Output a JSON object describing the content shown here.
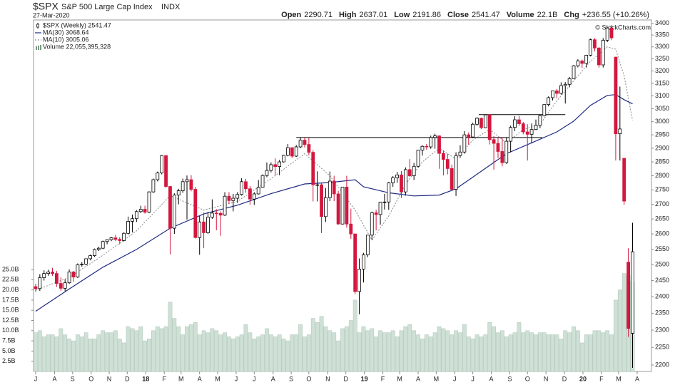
{
  "chart_data": {
    "type": "candlestick",
    "title": "$SPX",
    "subtitle": "S&P 500 Large Cap Index",
    "exchange": "INDX",
    "date": "27-Mar-2020",
    "stats": [
      {
        "label": "Open",
        "value": "2290.71"
      },
      {
        "label": "High",
        "value": "2637.01"
      },
      {
        "label": "Low",
        "value": "2191.86"
      },
      {
        "label": "Close",
        "value": "2541.47"
      },
      {
        "label": "Volume",
        "value": "22.1B"
      },
      {
        "label": "Chg",
        "value": "+236.55 (+10.26%)"
      }
    ],
    "watermark": "© StockCharts.com",
    "name": "$SPX (Weekly) 2541.47",
    "up_color": "#000000",
    "down_color": "#d4173e",
    "log": true,
    "ylim": [
      2182,
      3415
    ],
    "yticks": [
      2200,
      2250,
      2300,
      2350,
      2400,
      2450,
      2500,
      2550,
      2600,
      2650,
      2700,
      2750,
      2800,
      2850,
      2900,
      2950,
      3000,
      3050,
      3100,
      3150,
      3200,
      3250,
      3300,
      3350,
      3400
    ],
    "xlim": [
      -0.5,
      146.5
    ],
    "xticks": [
      {
        "value": 0,
        "label": "J"
      },
      {
        "value": 4.5,
        "label": "A"
      },
      {
        "value": 8.8,
        "label": "S"
      },
      {
        "value": 13.2,
        "label": "O"
      },
      {
        "value": 17.5,
        "label": "N"
      },
      {
        "value": 21.8,
        "label": "D"
      },
      {
        "value": 26.2,
        "label": "18"
      },
      {
        "value": 30.6,
        "label": "F"
      },
      {
        "value": 34.6,
        "label": "M"
      },
      {
        "value": 39,
        "label": "A"
      },
      {
        "value": 43.3,
        "label": "M"
      },
      {
        "value": 47.7,
        "label": "J"
      },
      {
        "value": 52,
        "label": "J"
      },
      {
        "value": 56.5,
        "label": "A"
      },
      {
        "value": 60.8,
        "label": "S"
      },
      {
        "value": 65,
        "label": "O"
      },
      {
        "value": 69.5,
        "label": "N"
      },
      {
        "value": 73.8,
        "label": "D"
      },
      {
        "value": 78.2,
        "label": "19"
      },
      {
        "value": 82.6,
        "label": "F"
      },
      {
        "value": 86.6,
        "label": "M"
      },
      {
        "value": 91,
        "label": "A"
      },
      {
        "value": 95.3,
        "label": "M"
      },
      {
        "value": 99.7,
        "label": "J"
      },
      {
        "value": 104,
        "label": "J"
      },
      {
        "value": 108.4,
        "label": "A"
      },
      {
        "value": 112.8,
        "label": "S"
      },
      {
        "value": 117,
        "label": "O"
      },
      {
        "value": 121.4,
        "label": "N"
      },
      {
        "value": 125.8,
        "label": "D"
      },
      {
        "value": 130.2,
        "label": "20"
      },
      {
        "value": 134.6,
        "label": "F"
      },
      {
        "value": 138.7,
        "label": "M"
      },
      {
        "value": 143.1,
        "label": "A"
      }
    ],
    "open": [
      2431,
      2425,
      2459,
      2472,
      2477,
      2472,
      2441,
      2426,
      2443,
      2477,
      2461,
      2500,
      2502,
      2519,
      2529,
      2549,
      2553,
      2575,
      2581,
      2587,
      2582,
      2578,
      2602,
      2642,
      2651,
      2675,
      2683,
      2673,
      2743,
      2786,
      2810,
      2873,
      2762,
      2619,
      2732,
      2747,
      2779,
      2786,
      2752,
      2588,
      2640,
      2604,
      2656,
      2670,
      2669,
      2663,
      2728,
      2713,
      2721,
      2734,
      2779,
      2754,
      2718,
      2736,
      2759,
      2801,
      2819,
      2840,
      2833,
      2850,
      2874,
      2902,
      2871,
      2905,
      2930,
      2914,
      2885,
      2768,
      2768,
      2658,
      2723,
      2781,
      2736,
      2633,
      2760,
      2633,
      2600,
      2416,
      2486,
      2532,
      2596,
      2671,
      2665,
      2707,
      2708,
      2775,
      2793,
      2803,
      2743,
      2822,
      2800,
      2834,
      2893,
      2907,
      2905,
      2940,
      2946,
      2881,
      2859,
      2826,
      2752,
      2873,
      2886,
      2950,
      2942,
      2990,
      3013,
      2977,
      3026,
      2932,
      2918,
      2888,
      2847,
      2926,
      2978,
      3007,
      2992,
      2961,
      2952,
      2970,
      2986,
      3023,
      3066,
      3093,
      3120,
      3110,
      3141,
      3146,
      3169,
      3221,
      3241,
      3231,
      3265,
      3330,
      3295,
      3225,
      3328,
      3380,
      3257,
      2954,
      2863,
      2508,
      2290.71
    ],
    "high": [
      2440,
      2470,
      2482,
      2484,
      2490,
      2480,
      2460,
      2454,
      2485,
      2480,
      2504,
      2508,
      2520,
      2532,
      2552,
      2558,
      2578,
      2582,
      2590,
      2597,
      2589,
      2605,
      2658,
      2665,
      2680,
      2695,
      2695,
      2745,
      2790,
      2815,
      2875,
      2872,
      2764,
      2738,
      2754,
      2790,
      2801,
      2802,
      2761,
      2660,
      2672,
      2674,
      2717,
      2683,
      2676,
      2742,
      2742,
      2736,
      2742,
      2791,
      2789,
      2764,
      2742,
      2785,
      2805,
      2848,
      2848,
      2863,
      2857,
      2876,
      2916,
      2903,
      2912,
      2941,
      2940,
      2939,
      2893,
      2816,
      2775,
      2757,
      2815,
      2800,
      2747,
      2760,
      2800,
      2685,
      2601,
      2520,
      2538,
      2597,
      2675,
      2681,
      2709,
      2736,
      2778,
      2799,
      2814,
      2817,
      2830,
      2860,
      2846,
      2894,
      2911,
      2916,
      2947,
      2954,
      2948,
      2892,
      2880,
      2840,
      2885,
      2911,
      2964,
      2959,
      2996,
      3017,
      3015,
      3028,
      3028,
      2945,
      2942,
      2940,
      2941,
      2985,
      3021,
      3022,
      2999,
      2990,
      2993,
      3008,
      3027,
      3067,
      3098,
      3121,
      3127,
      3154,
      3155,
      3176,
      3225,
      3248,
      3247,
      3267,
      3335,
      3337,
      3299,
      3337,
      3385,
      3393,
      3259,
      3137,
      2863,
      2553,
      2637.01
    ],
    "low": [
      2415,
      2418,
      2450,
      2465,
      2465,
      2430,
      2418,
      2417,
      2440,
      2446,
      2458,
      2494,
      2498,
      2514,
      2525,
      2544,
      2550,
      2566,
      2576,
      2576,
      2566,
      2575,
      2598,
      2605,
      2640,
      2670,
      2668,
      2670,
      2740,
      2780,
      2805,
      2758,
      2533,
      2600,
      2700,
      2740,
      2648,
      2745,
      2585,
      2532,
      2553,
      2600,
      2650,
      2612,
      2594,
      2660,
      2702,
      2676,
      2705,
      2730,
      2740,
      2699,
      2698,
      2734,
      2758,
      2795,
      2812,
      2802,
      2802,
      2848,
      2870,
      2864,
      2868,
      2900,
      2903,
      2874,
      2710,
      2710,
      2603,
      2640,
      2711,
      2711,
      2631,
      2631,
      2621,
      2584,
      2408,
      2347,
      2444,
      2524,
      2580,
      2612,
      2631,
      2682,
      2681,
      2761,
      2775,
      2722,
      2730,
      2796,
      2785,
      2830,
      2873,
      2895,
      2898,
      2898,
      2825,
      2801,
      2805,
      2750,
      2729,
      2865,
      2880,
      2913,
      2938,
      2984,
      2971,
      2976,
      2914,
      2822,
      2864,
      2834,
      2843,
      2885,
      2964,
      2984,
      2952,
      2855,
      2918,
      2968,
      2975,
      3020,
      3059,
      3082,
      3091,
      3105,
      3070,
      3134,
      3170,
      3215,
      3212,
      3214,
      3260,
      3281,
      3214,
      3214,
      3320,
      3328,
      2855,
      2855,
      2698,
      2280,
      2191.86
    ],
    "close": [
      2425,
      2459,
      2472,
      2477,
      2472,
      2441,
      2426,
      2443,
      2477,
      2461,
      2500,
      2502,
      2519,
      2529,
      2549,
      2553,
      2575,
      2581,
      2587,
      2582,
      2578,
      2602,
      2642,
      2651,
      2675,
      2683,
      2673,
      2743,
      2786,
      2810,
      2873,
      2762,
      2619,
      2732,
      2747,
      2779,
      2786,
      2752,
      2588,
      2640,
      2604,
      2656,
      2670,
      2669,
      2663,
      2728,
      2713,
      2721,
      2734,
      2779,
      2754,
      2718,
      2736,
      2759,
      2801,
      2819,
      2840,
      2833,
      2850,
      2874,
      2902,
      2871,
      2905,
      2930,
      2914,
      2885,
      2768,
      2768,
      2658,
      2723,
      2781,
      2736,
      2633,
      2760,
      2633,
      2600,
      2416,
      2486,
      2532,
      2596,
      2671,
      2665,
      2707,
      2708,
      2775,
      2793,
      2803,
      2743,
      2822,
      2800,
      2834,
      2893,
      2907,
      2905,
      2940,
      2946,
      2881,
      2859,
      2826,
      2752,
      2873,
      2886,
      2950,
      2942,
      2990,
      3013,
      2977,
      3026,
      2932,
      2918,
      2888,
      2847,
      2926,
      2978,
      3007,
      2992,
      2961,
      2952,
      2970,
      2986,
      3023,
      3066,
      3093,
      3120,
      3110,
      3141,
      3146,
      3169,
      3221,
      3241,
      3231,
      3265,
      3330,
      3295,
      3225,
      3328,
      3380,
      3338,
      2954,
      2972,
      2711,
      2305,
      2541.47
    ],
    "series": [
      {
        "name": "MA(30) 3068.64",
        "color": "#1f2a80",
        "dash": false,
        "x": [
          0,
          8,
          16,
          24,
          32,
          40,
          48,
          56,
          64,
          70,
          76,
          78,
          84,
          90,
          96,
          100,
          106,
          112,
          118,
          124,
          128,
          132,
          136,
          138,
          140,
          142
        ],
        "values": [
          2356,
          2424,
          2492,
          2549,
          2619,
          2667,
          2697,
          2737,
          2771,
          2776,
          2786,
          2761,
          2740,
          2729,
          2732,
          2754,
          2816,
          2880,
          2920,
          2961,
          3002,
          3063,
          3102,
          3105,
          3085,
          3068.64
        ]
      },
      {
        "name": "MA(10) 3005.06",
        "color": "#8a8a8a",
        "dash": true,
        "x": [
          0,
          8,
          16,
          24,
          32,
          40,
          48,
          56,
          64,
          70,
          76,
          80,
          84,
          88,
          92,
          96,
          100,
          104,
          108,
          112,
          116,
          120,
          124,
          128,
          132,
          136,
          138,
          140,
          142
        ],
        "values": [
          2420,
          2460,
          2530,
          2610,
          2730,
          2680,
          2710,
          2790,
          2880,
          2800,
          2680,
          2580,
          2660,
          2770,
          2850,
          2900,
          2860,
          2930,
          2970,
          2920,
          2970,
          2990,
          3080,
          3160,
          3240,
          3300,
          3290,
          3180,
          3005.06
        ]
      }
    ],
    "volume": {
      "name": "Volume 22,055,395,328",
      "color": "#cfe1d6",
      "ylim": [
        0,
        86.2
      ],
      "yticks": [
        {
          "value": 2.5,
          "label": "2.5B"
        },
        {
          "value": 5,
          "label": "5.0B"
        },
        {
          "value": 7.5,
          "label": "7.5B"
        },
        {
          "value": 10,
          "label": "10.0B"
        },
        {
          "value": 12.5,
          "label": "12.5B"
        },
        {
          "value": 15,
          "label": "15.0B"
        },
        {
          "value": 17.5,
          "label": "17.5B"
        },
        {
          "value": 20,
          "label": "20.0B"
        },
        {
          "value": 22.5,
          "label": "22.5B"
        },
        {
          "value": 25,
          "label": "25.0B"
        }
      ],
      "values": [
        9.5,
        10,
        8.5,
        9,
        9,
        8.5,
        10.5,
        9,
        8,
        7.5,
        9,
        8.5,
        9.5,
        8,
        8,
        9,
        10,
        9.5,
        9.5,
        10,
        8,
        7,
        11,
        10.5,
        10,
        11,
        7.5,
        8,
        10,
        11,
        10.5,
        11,
        17,
        13,
        11,
        9,
        11,
        11.5,
        12,
        9,
        10,
        9.5,
        10.5,
        10,
        9,
        9.5,
        8.5,
        8,
        8.5,
        9,
        11.5,
        9.5,
        8,
        8.5,
        9,
        10.5,
        9,
        8.5,
        9,
        8,
        7.5,
        9,
        9,
        11.5,
        8.5,
        9,
        13,
        12,
        13.5,
        11,
        10,
        9.5,
        7.5,
        10.5,
        11,
        12.5,
        17.5,
        9.5,
        11,
        10,
        10.5,
        8.5,
        10,
        9.5,
        9.5,
        10,
        8.5,
        10,
        11,
        11.5,
        10,
        9,
        8,
        9,
        8.5,
        9.5,
        11,
        10.5,
        10,
        9,
        10,
        9.5,
        11.5,
        8.5,
        8,
        9,
        8.5,
        9,
        12,
        11,
        9.5,
        10,
        8.5,
        9,
        9.5,
        12,
        9.5,
        10,
        9.5,
        9,
        9.5,
        9.5,
        9,
        9,
        9,
        8,
        10,
        9.5,
        11,
        10,
        7,
        9,
        9,
        10,
        10,
        9.5,
        10,
        9,
        17.5,
        20,
        24,
        23.5,
        22.055
      ]
    },
    "lines": [
      {
        "y": 2940,
        "x": [
          62,
          120.5
        ]
      },
      {
        "y": 3027,
        "x": [
          105.4,
          126
        ]
      }
    ]
  }
}
